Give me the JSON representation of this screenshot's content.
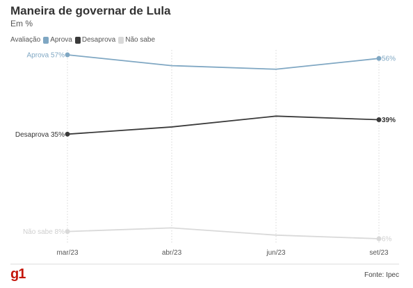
{
  "header": {
    "title": "Maneira de governar de Lula",
    "subtitle": "Em %"
  },
  "legend": {
    "title": "Avaliação",
    "items": [
      {
        "label": "Aprova",
        "color": "#7fa7c3"
      },
      {
        "label": "Desaprova",
        "color": "#3a3a3a"
      },
      {
        "label": "Não sabe",
        "color": "#d9d9d9"
      }
    ]
  },
  "footer": {
    "logo": "g1",
    "source": "Fonte: Ipec"
  },
  "chart_data": {
    "type": "line",
    "categories": [
      "mar/23",
      "abr/23",
      "jun/23",
      "set/23"
    ],
    "ylim": [
      6,
      57
    ],
    "grid": "vertical",
    "legend_placement": "top-left",
    "series": [
      {
        "name": "Aprova",
        "color": "#7fa7c3",
        "values": [
          57,
          54,
          53,
          56
        ],
        "start_label": "Aprova 57%",
        "end_label": "56%"
      },
      {
        "name": "Desaprova",
        "color": "#3a3a3a",
        "values": [
          35,
          37,
          40,
          39
        ],
        "start_label": "Desaprova 35%",
        "end_label": "39%"
      },
      {
        "name": "Não sabe",
        "color": "#d9d9d9",
        "values": [
          8,
          9,
          7,
          6
        ],
        "start_label": "Não sabe 8%",
        "end_label": "6%"
      }
    ]
  }
}
